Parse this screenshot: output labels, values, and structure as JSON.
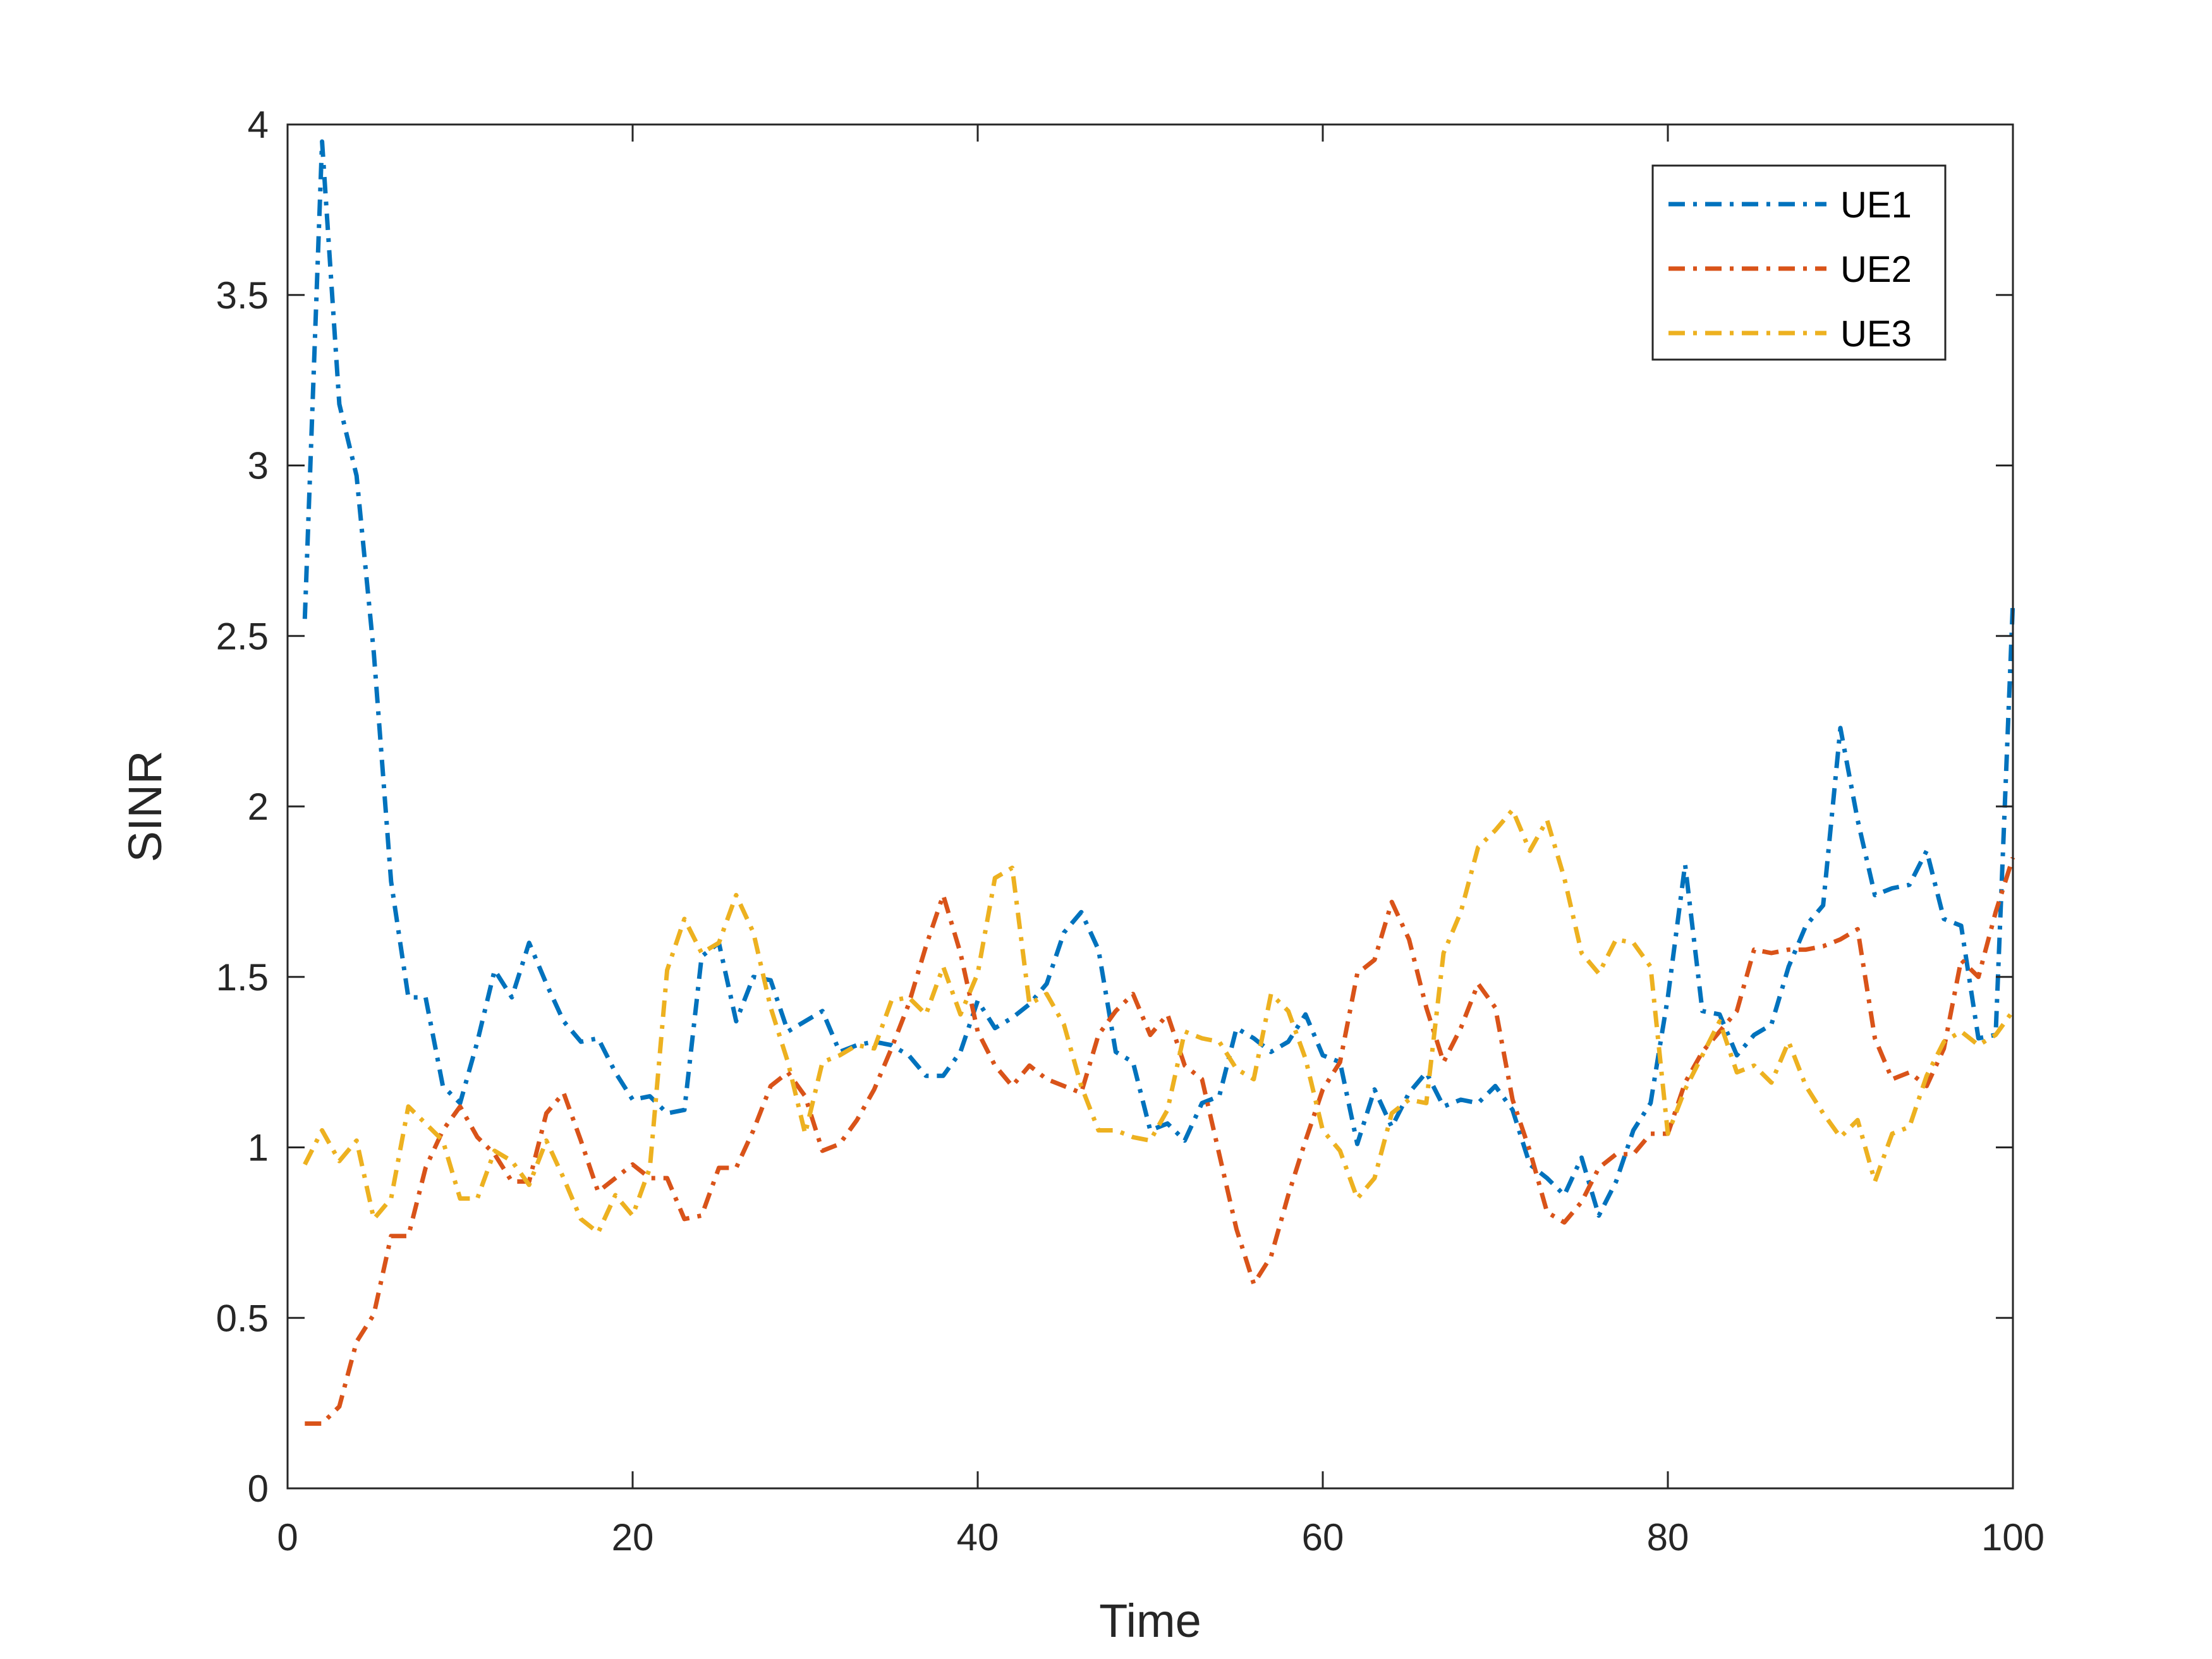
{
  "chart_data": {
    "type": "line",
    "title": "",
    "xlabel": "Time",
    "ylabel": "SINR",
    "xlim": [
      0,
      100
    ],
    "ylim": [
      0,
      4
    ],
    "xticks": [
      0,
      20,
      40,
      60,
      80,
      100
    ],
    "xtick_labels": [
      "0",
      "20",
      "40",
      "60",
      "80",
      "100"
    ],
    "yticks": [
      0,
      0.5,
      1,
      1.5,
      2,
      2.5,
      3,
      3.5,
      4
    ],
    "ytick_labels": [
      "0",
      "0.5",
      "1",
      "1.5",
      "2",
      "2.5",
      "3",
      "3.5",
      "4"
    ],
    "grid": false,
    "legend_position": "top-right",
    "x": [
      1,
      2,
      3,
      4,
      5,
      6,
      7,
      8,
      9,
      10,
      11,
      12,
      13,
      14,
      15,
      16,
      17,
      18,
      19,
      20,
      21,
      22,
      23,
      24,
      25,
      26,
      27,
      28,
      29,
      30,
      31,
      32,
      33,
      34,
      35,
      36,
      37,
      38,
      39,
      40,
      41,
      42,
      43,
      44,
      45,
      46,
      47,
      48,
      49,
      50,
      51,
      52,
      53,
      54,
      55,
      56,
      57,
      58,
      59,
      60,
      61,
      62,
      63,
      64,
      65,
      66,
      67,
      68,
      69,
      70,
      71,
      72,
      73,
      74,
      75,
      76,
      77,
      78,
      79,
      80,
      81,
      82,
      83,
      84,
      85,
      86,
      87,
      88,
      89,
      90,
      91,
      92,
      93,
      94,
      95,
      96,
      97,
      98,
      99,
      100
    ],
    "series": [
      {
        "name": "UE1",
        "color": "#0072BD",
        "dash": "dashdot",
        "values": [
          2.55,
          3.95,
          3.18,
          2.97,
          2.45,
          1.78,
          1.44,
          1.44,
          1.18,
          1.13,
          1.31,
          1.52,
          1.44,
          1.6,
          1.48,
          1.37,
          1.31,
          1.32,
          1.22,
          1.14,
          1.15,
          1.1,
          1.11,
          1.56,
          1.6,
          1.37,
          1.5,
          1.49,
          1.34,
          1.37,
          1.4,
          1.28,
          1.3,
          1.31,
          1.3,
          1.27,
          1.21,
          1.21,
          1.28,
          1.43,
          1.35,
          1.38,
          1.42,
          1.48,
          1.63,
          1.69,
          1.58,
          1.28,
          1.25,
          1.05,
          1.07,
          1.02,
          1.13,
          1.15,
          1.35,
          1.32,
          1.28,
          1.31,
          1.39,
          1.27,
          1.25,
          1.01,
          1.17,
          1.06,
          1.16,
          1.22,
          1.12,
          1.14,
          1.13,
          1.18,
          1.11,
          0.95,
          0.91,
          0.86,
          0.97,
          0.8,
          0.9,
          1.05,
          1.13,
          1.44,
          1.83,
          1.4,
          1.39,
          1.27,
          1.33,
          1.36,
          1.53,
          1.65,
          1.71,
          2.23,
          1.96,
          1.74,
          1.76,
          1.77,
          1.87,
          1.67,
          1.65,
          1.32,
          1.33,
          2.6
        ]
      },
      {
        "name": "UE2",
        "color": "#D95319",
        "dash": "dashdot",
        "values": [
          0.19,
          0.19,
          0.24,
          0.43,
          0.51,
          0.74,
          0.74,
          0.94,
          1.05,
          1.12,
          1.03,
          0.98,
          0.9,
          0.9,
          1.1,
          1.16,
          1.02,
          0.87,
          0.91,
          0.95,
          0.91,
          0.91,
          0.79,
          0.8,
          0.94,
          0.94,
          1.05,
          1.18,
          1.22,
          1.15,
          0.99,
          1.01,
          1.08,
          1.17,
          1.29,
          1.42,
          1.59,
          1.74,
          1.57,
          1.34,
          1.24,
          1.18,
          1.24,
          1.2,
          1.18,
          1.16,
          1.33,
          1.4,
          1.45,
          1.33,
          1.39,
          1.24,
          1.2,
          0.98,
          0.76,
          0.6,
          0.68,
          0.86,
          1.02,
          1.17,
          1.25,
          1.51,
          1.55,
          1.72,
          1.61,
          1.41,
          1.25,
          1.35,
          1.48,
          1.41,
          1.14,
          0.99,
          0.81,
          0.78,
          0.84,
          0.94,
          0.98,
          0.98,
          1.04,
          1.04,
          1.19,
          1.28,
          1.34,
          1.4,
          1.58,
          1.57,
          1.58,
          1.58,
          1.59,
          1.61,
          1.64,
          1.32,
          1.2,
          1.22,
          1.18,
          1.29,
          1.55,
          1.5,
          1.69,
          1.85
        ]
      },
      {
        "name": "UE3",
        "color": "#EDB120",
        "dash": "dashdot",
        "values": [
          0.95,
          1.05,
          0.96,
          1.02,
          0.79,
          0.85,
          1.12,
          1.07,
          1.02,
          0.85,
          0.85,
          0.99,
          0.96,
          0.89,
          1.02,
          0.91,
          0.79,
          0.75,
          0.86,
          0.8,
          0.94,
          1.52,
          1.67,
          1.57,
          1.6,
          1.74,
          1.63,
          1.41,
          1.25,
          1.04,
          1.25,
          1.27,
          1.3,
          1.29,
          1.43,
          1.44,
          1.39,
          1.53,
          1.39,
          1.51,
          1.79,
          1.82,
          1.42,
          1.45,
          1.36,
          1.18,
          1.05,
          1.05,
          1.03,
          1.02,
          1.11,
          1.34,
          1.32,
          1.31,
          1.23,
          1.2,
          1.45,
          1.4,
          1.26,
          1.05,
          0.99,
          0.85,
          0.91,
          1.1,
          1.14,
          1.13,
          1.57,
          1.69,
          1.88,
          1.93,
          1.99,
          1.87,
          1.96,
          1.79,
          1.57,
          1.51,
          1.61,
          1.6,
          1.53,
          1.04,
          1.17,
          1.27,
          1.37,
          1.22,
          1.24,
          1.19,
          1.31,
          1.18,
          1.1,
          1.03,
          1.08,
          0.9,
          1.04,
          1.06,
          1.21,
          1.31,
          1.34,
          1.3,
          1.33,
          1.4
        ]
      }
    ]
  }
}
